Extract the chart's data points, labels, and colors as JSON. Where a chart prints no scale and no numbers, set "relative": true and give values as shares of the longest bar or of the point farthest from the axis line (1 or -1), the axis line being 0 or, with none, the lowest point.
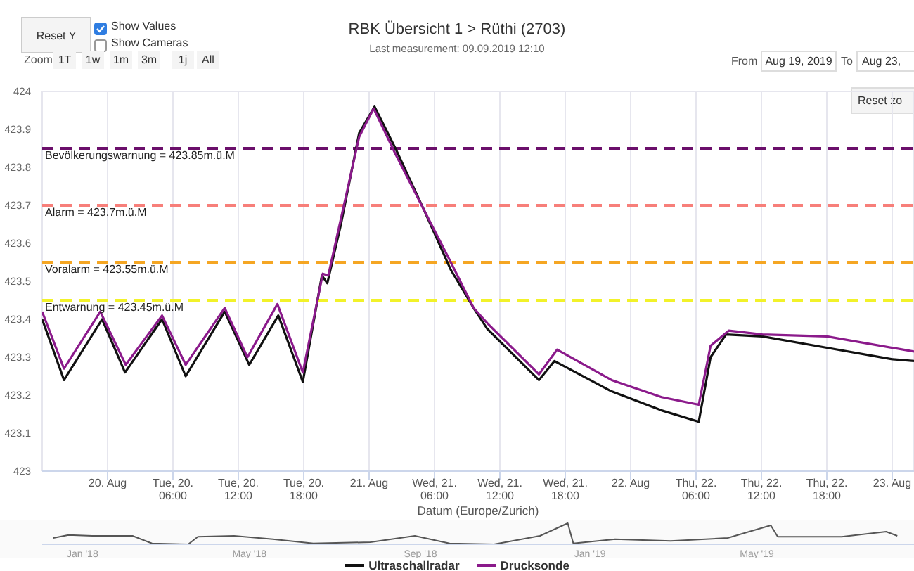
{
  "chart_data": [
    {
      "type": "line",
      "title": "RBK Übersicht 1 > Rüthi (2703)",
      "subtitle": "Last measurement: 09.09.2019 12:10",
      "xlabel": "Datum (Europe/Zurich)",
      "annotations": [
        "Reset Y",
        "Show Values",
        "Show Cameras",
        "Zoom",
        "1T",
        "1w",
        "1m",
        "3m",
        "1j",
        "All",
        "From",
        "Aug 19, 2019",
        "To",
        "Aug 23,",
        "Reset zo"
      ],
      "xlim": [
        "2019-08-19T18:00",
        "2019-08-23T02:00"
      ],
      "xticks": [
        {
          "value": "2019-08-20T00:00",
          "label": "20. Aug"
        },
        {
          "value": "2019-08-20T06:00",
          "label": "Tue, 20.\n06:00"
        },
        {
          "value": "2019-08-20T12:00",
          "label": "Tue, 20.\n12:00"
        },
        {
          "value": "2019-08-20T18:00",
          "label": "Tue, 20.\n18:00"
        },
        {
          "value": "2019-08-21T00:00",
          "label": "21. Aug"
        },
        {
          "value": "2019-08-21T06:00",
          "label": "Wed, 21.\n06:00"
        },
        {
          "value": "2019-08-21T12:00",
          "label": "Wed, 21.\n12:00"
        },
        {
          "value": "2019-08-21T18:00",
          "label": "Wed, 21.\n18:00"
        },
        {
          "value": "2019-08-22T00:00",
          "label": "22. Aug"
        },
        {
          "value": "2019-08-22T06:00",
          "label": "Thu, 22.\n06:00"
        },
        {
          "value": "2019-08-22T12:00",
          "label": "Thu, 22.\n12:00"
        },
        {
          "value": "2019-08-22T18:00",
          "label": "Thu, 22.\n18:00"
        },
        {
          "value": "2019-08-23T00:00",
          "label": "23. Aug"
        }
      ],
      "ylim": [
        423,
        424
      ],
      "yticks": [
        423,
        423.1,
        423.2,
        423.3,
        423.4,
        423.5,
        423.6,
        423.7,
        423.8,
        423.9,
        424
      ],
      "grid": true,
      "legend": "bottom",
      "marker": "none",
      "ref_lines": [
        {
          "axis": "y",
          "value": 423.85,
          "label": "Bevölkerungswarnung = 423.85m.ü.M",
          "color": "#6b0f6b",
          "line_style": "dashed"
        },
        {
          "axis": "y",
          "value": 423.7,
          "label": "Alarm = 423.7m.ü.M",
          "color": "#f77f7a",
          "line_style": "dashed"
        },
        {
          "axis": "y",
          "value": 423.55,
          "label": "Voralarm = 423.55m.ü.M",
          "color": "#f5a623",
          "line_style": "dashed"
        },
        {
          "axis": "y",
          "value": 423.45,
          "label": "Entwarnung = 423.45m.ü.M",
          "color": "#f2f22a",
          "line_style": "dashed"
        }
      ],
      "series": [
        {
          "name": "Ultraschallradar",
          "color": "#111111",
          "x": [
            "2019-08-19T18:00",
            "2019-08-19T20:00",
            "2019-08-19T23:30",
            "2019-08-20T01:36",
            "2019-08-20T05:00",
            "2019-08-20T07:10",
            "2019-08-20T10:45",
            "2019-08-20T13:00",
            "2019-08-20T15:40",
            "2019-08-20T17:55",
            "2019-08-20T19:40",
            "2019-08-20T20:10",
            "2019-08-20T21:25",
            "2019-08-20T23:05",
            "2019-08-21T00:30",
            "2019-08-21T02:25",
            "2019-08-21T05:00",
            "2019-08-21T07:30",
            "2019-08-21T09:35",
            "2019-08-21T10:50",
            "2019-08-21T15:35",
            "2019-08-21T17:00",
            "2019-08-21T22:15",
            "2019-08-22T02:50",
            "2019-08-22T06:15",
            "2019-08-22T07:20",
            "2019-08-22T08:45",
            "2019-08-22T12:05",
            "2019-08-22T18:00",
            "2019-08-22T23:55",
            "2019-08-23T02:00"
          ],
          "values": [
            423.4,
            423.24,
            423.4,
            423.26,
            423.4,
            423.25,
            423.42,
            423.28,
            423.41,
            423.235,
            423.515,
            423.495,
            423.65,
            423.89,
            423.96,
            423.85,
            423.69,
            423.53,
            423.43,
            423.375,
            423.24,
            423.29,
            423.21,
            423.16,
            423.13,
            423.3,
            423.36,
            423.355,
            423.325,
            423.295,
            423.29
          ]
        },
        {
          "name": "Drucksonde",
          "color": "#8b1a8b",
          "x": [
            "2019-08-19T18:00",
            "2019-08-19T20:00",
            "2019-08-19T23:20",
            "2019-08-20T01:40",
            "2019-08-20T05:00",
            "2019-08-20T07:10",
            "2019-08-20T10:45",
            "2019-08-20T12:50",
            "2019-08-20T15:35",
            "2019-08-20T17:55",
            "2019-08-20T19:45",
            "2019-08-20T20:15",
            "2019-08-20T23:05",
            "2019-08-21T00:25",
            "2019-08-21T02:25",
            "2019-08-21T05:00",
            "2019-08-21T07:30",
            "2019-08-21T09:35",
            "2019-08-21T10:50",
            "2019-08-21T15:35",
            "2019-08-21T17:15",
            "2019-08-21T22:15",
            "2019-08-22T02:50",
            "2019-08-22T06:15",
            "2019-08-22T07:20",
            "2019-08-22T09:00",
            "2019-08-22T12:05",
            "2019-08-22T18:00",
            "2019-08-23T02:00"
          ],
          "values": [
            423.42,
            423.27,
            423.42,
            423.28,
            423.41,
            423.28,
            423.43,
            423.3,
            423.44,
            423.26,
            423.52,
            423.515,
            423.88,
            423.955,
            423.835,
            423.69,
            423.55,
            423.43,
            423.39,
            423.255,
            423.32,
            423.24,
            423.195,
            423.175,
            423.33,
            423.37,
            423.36,
            423.355,
            423.315
          ]
        }
      ]
    },
    {
      "type": "line",
      "relative": true,
      "marker": "none",
      "xlim": [
        "2017-12-03",
        "2019-08-22"
      ],
      "xticks": [
        {
          "value": "2018-01-01",
          "label": "Jan '18"
        },
        {
          "value": "2018-05-01",
          "label": "May '18"
        },
        {
          "value": "2018-09-01",
          "label": "Sep '18"
        },
        {
          "value": "2019-01-01",
          "label": "Jan '19"
        },
        {
          "value": "2019-05-01",
          "label": "May '19"
        }
      ],
      "series": [
        {
          "color": "#555555",
          "x": [
            "2017-12-11",
            "2017-12-22",
            "2018-01-08",
            "2018-02-06",
            "2018-02-20",
            "2018-03-18",
            "2018-03-25",
            "2018-04-20",
            "2018-05-18",
            "2018-06-16",
            "2018-07-27",
            "2018-08-28",
            "2018-09-22",
            "2018-10-24",
            "2018-11-26",
            "2018-12-16",
            "2018-12-20",
            "2019-01-19",
            "2019-02-28",
            "2019-04-10",
            "2019-05-11",
            "2019-05-16",
            "2019-07-01",
            "2019-08-02",
            "2019-08-10"
          ],
          "values": [
            0.3,
            0.44,
            0.4,
            0.4,
            0.04,
            0,
            0.36,
            0.4,
            0.24,
            0.04,
            0.1,
            0.4,
            0.04,
            0,
            0.4,
            1,
            0.04,
            0.24,
            0.16,
            0.3,
            0.9,
            0.36,
            0.36,
            0.6,
            0.4
          ]
        }
      ]
    }
  ]
}
